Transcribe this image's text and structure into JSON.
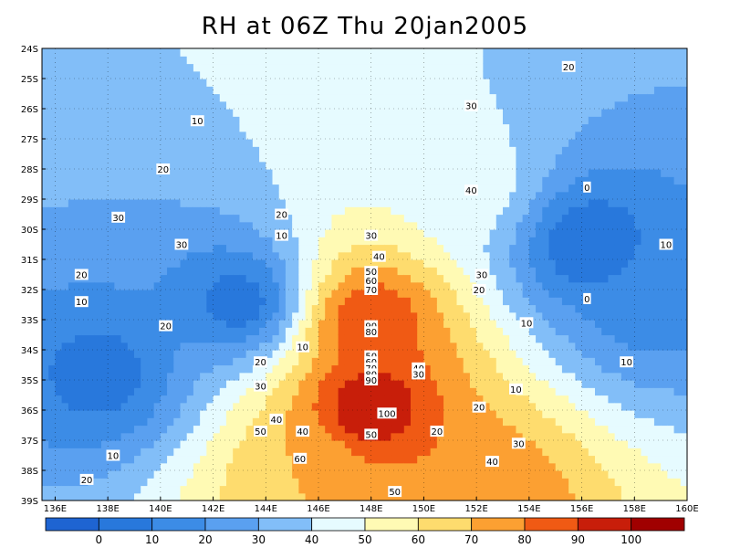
{
  "chart_data": {
    "type": "heatmap",
    "title": "RH at 06Z Thu 20jan2005",
    "x_range": [
      135.5,
      160
    ],
    "y_range": [
      -39,
      -24
    ],
    "x_ticks": [
      "136E",
      "138E",
      "140E",
      "142E",
      "144E",
      "146E",
      "148E",
      "150E",
      "152E",
      "154E",
      "156E",
      "158E",
      "160E"
    ],
    "x_tick_values": [
      136,
      138,
      140,
      142,
      144,
      146,
      148,
      150,
      152,
      154,
      156,
      158,
      160
    ],
    "y_ticks": [
      "24S",
      "25S",
      "26S",
      "27S",
      "28S",
      "29S",
      "30S",
      "31S",
      "32S",
      "33S",
      "34S",
      "35S",
      "36S",
      "37S",
      "38S",
      "39S"
    ],
    "y_tick_values": [
      -24,
      -25,
      -26,
      -27,
      -28,
      -29,
      -30,
      -31,
      -32,
      -33,
      -34,
      -35,
      -36,
      -37,
      -38,
      -39
    ],
    "grid": true,
    "colorbar": {
      "levels": [
        0,
        10,
        20,
        30,
        40,
        50,
        60,
        70,
        80,
        90,
        100
      ],
      "labels": [
        "0",
        "10",
        "20",
        "30",
        "40",
        "50",
        "60",
        "70",
        "80",
        "90",
        "100"
      ],
      "colors": [
        "#1e64d2",
        "#2878dc",
        "#3c8ce6",
        "#5aa0f0",
        "#82bef8",
        "#e6fbff",
        "#fffab4",
        "#fedc6e",
        "#fca032",
        "#f05a14",
        "#c81e0a",
        "#a00000"
      ]
    },
    "field_centers": [
      {
        "lon": 148.0,
        "lat": -33.0,
        "value": 90
      },
      {
        "lon": 148.0,
        "lat": -35.9,
        "value": 100
      },
      {
        "lon": 152.5,
        "lat": -38.8,
        "value": 80
      },
      {
        "lon": 145.8,
        "lat": -38.2,
        "value": 70
      },
      {
        "lon": 151.8,
        "lat": -28.6,
        "value": 45
      },
      {
        "lon": 156.2,
        "lat": -30.5,
        "value": 0
      },
      {
        "lon": 137.8,
        "lat": -34.8,
        "value": 5
      },
      {
        "lon": 143.0,
        "lat": -32.4,
        "value": 5
      },
      {
        "lon": 158.5,
        "lat": -32.5,
        "value": 15
      }
    ],
    "contour_labels": [
      {
        "lon": 155.5,
        "lat": -24.6,
        "text": "20"
      },
      {
        "lon": 151.8,
        "lat": -25.9,
        "text": "30"
      },
      {
        "lon": 141.4,
        "lat": -26.4,
        "text": "10"
      },
      {
        "lon": 151.8,
        "lat": -28.7,
        "text": "40"
      },
      {
        "lon": 140.1,
        "lat": -28.0,
        "text": "20"
      },
      {
        "lon": 156.2,
        "lat": -28.6,
        "text": "0"
      },
      {
        "lon": 138.4,
        "lat": -29.6,
        "text": "30"
      },
      {
        "lon": 144.6,
        "lat": -29.5,
        "text": "20"
      },
      {
        "lon": 140.8,
        "lat": -30.5,
        "text": "30"
      },
      {
        "lon": 144.6,
        "lat": -30.2,
        "text": "10"
      },
      {
        "lon": 148.0,
        "lat": -30.2,
        "text": "30"
      },
      {
        "lon": 159.2,
        "lat": -30.5,
        "text": "10"
      },
      {
        "lon": 148.3,
        "lat": -30.9,
        "text": "40"
      },
      {
        "lon": 137.0,
        "lat": -31.5,
        "text": "20"
      },
      {
        "lon": 148.0,
        "lat": -31.4,
        "text": "50"
      },
      {
        "lon": 148.0,
        "lat": -31.7,
        "text": "60"
      },
      {
        "lon": 148.0,
        "lat": -32.0,
        "text": "70"
      },
      {
        "lon": 152.2,
        "lat": -31.5,
        "text": "30"
      },
      {
        "lon": 152.1,
        "lat": -32.0,
        "text": "20"
      },
      {
        "lon": 156.2,
        "lat": -32.3,
        "text": "0"
      },
      {
        "lon": 137.0,
        "lat": -32.4,
        "text": "10"
      },
      {
        "lon": 148.0,
        "lat": -33.2,
        "text": "90"
      },
      {
        "lon": 148.0,
        "lat": -33.4,
        "text": "80"
      },
      {
        "lon": 153.9,
        "lat": -33.1,
        "text": "10"
      },
      {
        "lon": 140.2,
        "lat": -33.2,
        "text": "20"
      },
      {
        "lon": 145.4,
        "lat": -33.9,
        "text": "10"
      },
      {
        "lon": 143.8,
        "lat": -34.4,
        "text": "20"
      },
      {
        "lon": 148.0,
        "lat": -34.2,
        "text": "50"
      },
      {
        "lon": 148.0,
        "lat": -34.4,
        "text": "60"
      },
      {
        "lon": 148.0,
        "lat": -34.6,
        "text": "70"
      },
      {
        "lon": 148.0,
        "lat": -34.8,
        "text": "80"
      },
      {
        "lon": 148.0,
        "lat": -35.0,
        "text": "90"
      },
      {
        "lon": 149.8,
        "lat": -34.6,
        "text": "40"
      },
      {
        "lon": 149.8,
        "lat": -34.8,
        "text": "30"
      },
      {
        "lon": 143.8,
        "lat": -35.2,
        "text": "30"
      },
      {
        "lon": 153.5,
        "lat": -35.3,
        "text": "10"
      },
      {
        "lon": 157.7,
        "lat": -34.4,
        "text": "10"
      },
      {
        "lon": 152.1,
        "lat": -35.9,
        "text": "20"
      },
      {
        "lon": 148.6,
        "lat": -36.1,
        "text": "100"
      },
      {
        "lon": 144.4,
        "lat": -36.3,
        "text": "40"
      },
      {
        "lon": 145.4,
        "lat": -36.7,
        "text": "40"
      },
      {
        "lon": 148.0,
        "lat": -36.8,
        "text": "50"
      },
      {
        "lon": 143.8,
        "lat": -36.7,
        "text": "50"
      },
      {
        "lon": 150.5,
        "lat": -36.7,
        "text": "20"
      },
      {
        "lon": 153.6,
        "lat": -37.1,
        "text": "30"
      },
      {
        "lon": 138.2,
        "lat": -37.5,
        "text": "10"
      },
      {
        "lon": 152.6,
        "lat": -37.7,
        "text": "40"
      },
      {
        "lon": 145.3,
        "lat": -37.6,
        "text": "60"
      },
      {
        "lon": 137.2,
        "lat": -38.3,
        "text": "20"
      },
      {
        "lon": 148.9,
        "lat": -38.7,
        "text": "50"
      }
    ]
  }
}
